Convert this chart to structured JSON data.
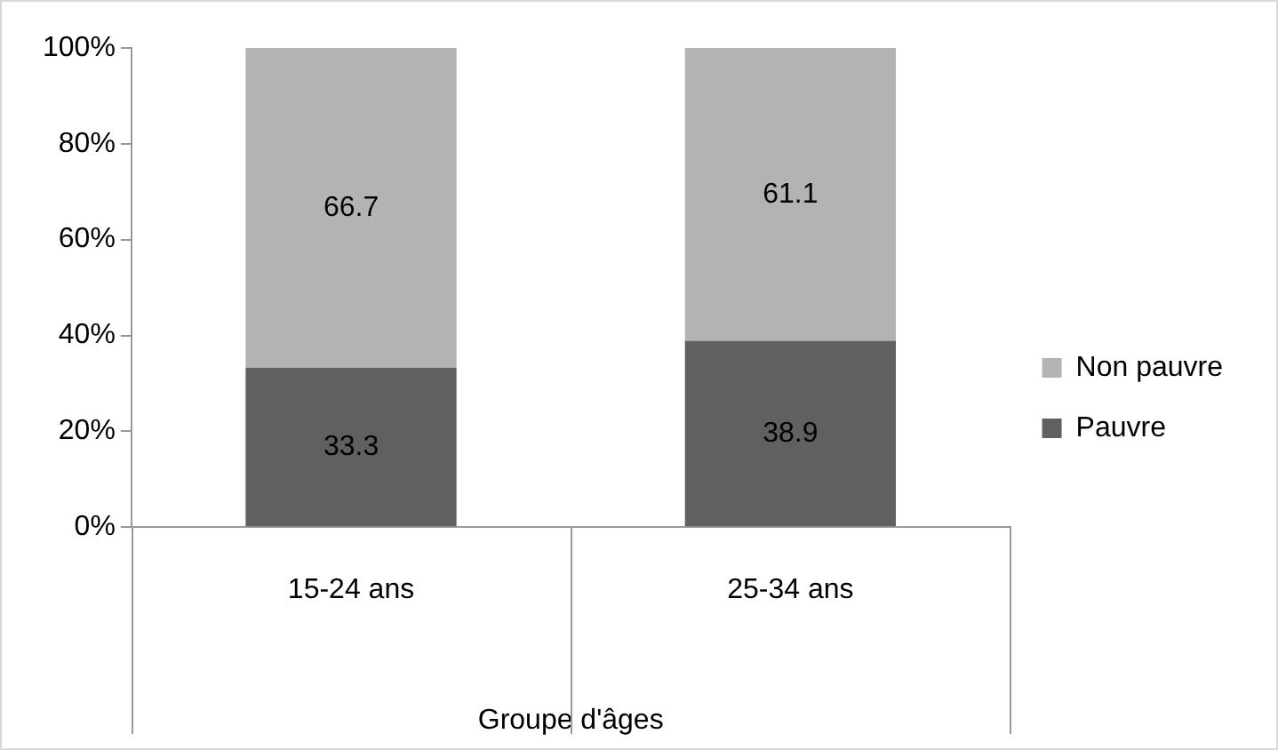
{
  "chart_data": {
    "type": "bar",
    "stacked": true,
    "xlabel": "Groupe d'âges",
    "categories": [
      "15-24 ans",
      "25-34 ans"
    ],
    "series": [
      {
        "name": "Pauvre",
        "color": "#606060",
        "values": [
          33.3,
          38.9
        ]
      },
      {
        "name": "Non pauvre",
        "color": "#b3b3b3",
        "values": [
          66.7,
          61.1
        ]
      }
    ],
    "ylim": [
      0,
      100
    ],
    "yticks": [
      {
        "value": 0,
        "label": "0%"
      },
      {
        "value": 20,
        "label": "20%"
      },
      {
        "value": 40,
        "label": "40%"
      },
      {
        "value": 60,
        "label": "60%"
      },
      {
        "value": 80,
        "label": "80%"
      },
      {
        "value": 100,
        "label": "100%"
      }
    ],
    "data_labels": true,
    "legend": "right",
    "grid": false
  }
}
